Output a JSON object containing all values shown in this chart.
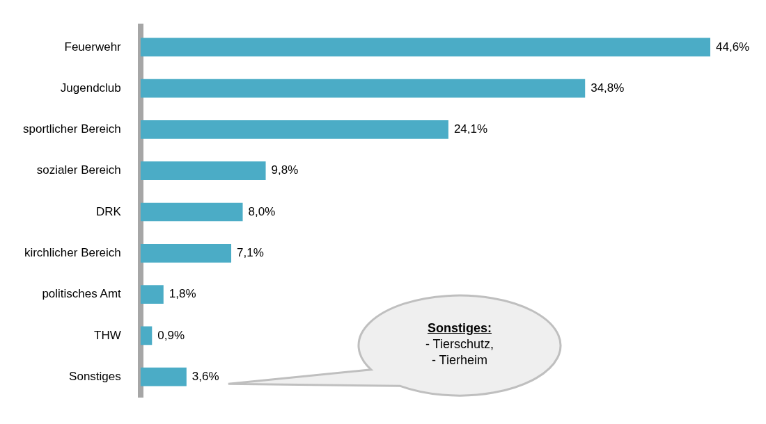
{
  "chart_data": {
    "type": "bar",
    "orientation": "horizontal",
    "categories": [
      "Feuerwehr",
      "Jugendclub",
      "sportlicher Bereich",
      "sozialer Bereich",
      "DRK",
      "kirchlicher Bereich",
      "politisches Amt",
      "THW",
      "Sonstiges"
    ],
    "values": [
      44.6,
      34.8,
      24.1,
      9.8,
      8.0,
      7.1,
      1.8,
      0.9,
      3.6
    ],
    "value_labels": [
      "44,6%",
      "34,8%",
      "24,1%",
      "9,8%",
      "8,0%",
      "7,1%",
      "1,8%",
      "0,9%",
      "3,6%"
    ],
    "color": "#4bacc6",
    "grid": false,
    "legend": false,
    "tick_labels": "y",
    "annotations": [
      "Sonstiges:\n- Tierschutz,\n- Tierheim"
    ]
  }
}
